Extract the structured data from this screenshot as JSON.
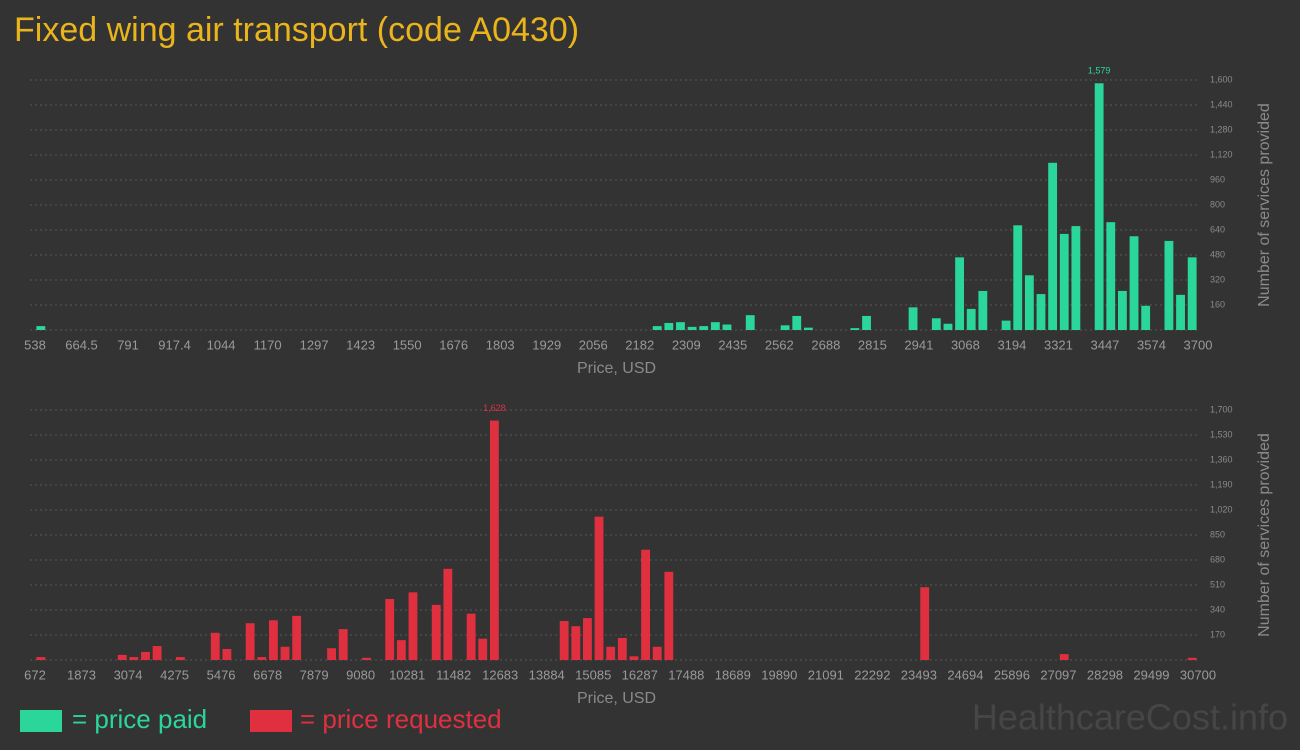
{
  "title": "Fixed wing air transport (code A0430)",
  "watermark": "HealthcareCost.info",
  "chart_data": [
    {
      "type": "histogram",
      "name": "= price paid",
      "color": "#2bd69a",
      "xlabel": "Price, USD",
      "ylabel": "Number of services provided",
      "bins": [
        538,
        569.62,
        601.24,
        632.86,
        664.48,
        696.1,
        727.72,
        759.34,
        790.96,
        822.58,
        854.2,
        885.82,
        917.44,
        949.06,
        980.68,
        1012.3,
        1043.92,
        1075.54,
        1107.16,
        1138.78,
        1170.4,
        1202.02,
        1233.64,
        1265.26,
        1296.88,
        1328.5,
        1360.12,
        1391.74,
        1423.36,
        1454.98,
        1486.6,
        1518.22,
        1549.84,
        1581.46,
        1613.08,
        1644.7,
        1676.32,
        1707.94,
        1739.56,
        1771.18,
        1802.8,
        1834.42,
        1866.04,
        1897.66,
        1929.28,
        1960.9,
        1992.52,
        2024.14,
        2055.76,
        2087.38,
        2119,
        2150.62,
        2182.24,
        2213.86,
        2245.48,
        2277.1,
        2308.72,
        2340.34,
        2371.96,
        2403.58,
        2435.2,
        2466.82,
        2498.44,
        2530.06,
        2561.68,
        2593.3,
        2624.92,
        2656.54,
        2688.16,
        2719.78,
        2751.4,
        2783.02,
        2814.64,
        2846.26,
        2877.88,
        2909.5,
        2941.12,
        2972.74,
        3004.36,
        3035.98,
        3067.6,
        3099.22,
        3130.84,
        3162.46,
        3194.08,
        3225.7,
        3257.32,
        3288.94,
        3320.56,
        3352.18,
        3383.8,
        3415.42,
        3447.04,
        3478.66,
        3510.28,
        3541.9,
        3573.52,
        3605.14,
        3636.76,
        3668.38,
        3700
      ],
      "values": [
        25,
        0,
        0,
        0,
        0,
        0,
        0,
        0,
        0,
        0,
        0,
        0,
        0,
        0,
        0,
        0,
        0,
        0,
        0,
        0,
        0,
        0,
        0,
        0,
        0,
        0,
        0,
        0,
        0,
        0,
        0,
        0,
        0,
        0,
        0,
        0,
        0,
        0,
        0,
        0,
        0,
        0,
        0,
        0,
        0,
        0,
        0,
        0,
        0,
        0,
        0,
        0,
        0,
        25,
        45,
        50,
        20,
        25,
        50,
        35,
        0,
        95,
        0,
        0,
        30,
        90,
        15,
        0,
        0,
        0,
        12,
        90,
        0,
        0,
        0,
        145,
        0,
        75,
        40,
        465,
        135,
        250,
        0,
        60,
        670,
        350,
        230,
        1070,
        615,
        665,
        0,
        1579,
        690,
        250,
        600,
        155,
        0,
        570,
        225,
        465
      ],
      "value_labels": {
        "91": "1,579"
      },
      "xlim": [
        538,
        3700
      ],
      "xticks": [
        538,
        {
          "value": 664.48,
          "label": "664.5"
        },
        {
          "value": 790.96,
          "label": "791"
        },
        {
          "value": 917.44,
          "label": "917.4"
        },
        {
          "value": 1043.92,
          "label": "1044"
        },
        {
          "value": 1170.4,
          "label": "1170"
        },
        {
          "value": 1296.88,
          "label": "1297"
        },
        {
          "value": 1423.36,
          "label": "1423"
        },
        {
          "value": 1549.84,
          "label": "1550"
        },
        {
          "value": 1676.32,
          "label": "1676"
        },
        {
          "value": 1802.8,
          "label": "1803"
        },
        {
          "value": 1929.28,
          "label": "1929"
        },
        {
          "value": 2055.76,
          "label": "2056"
        },
        {
          "value": 2182.24,
          "label": "2182"
        },
        {
          "value": 2308.72,
          "label": "2309"
        },
        {
          "value": 2435.2,
          "label": "2435"
        },
        {
          "value": 2561.68,
          "label": "2562"
        },
        {
          "value": 2688.16,
          "label": "2688"
        },
        {
          "value": 2814.64,
          "label": "2815"
        },
        {
          "value": 2941.12,
          "label": "2941"
        },
        {
          "value": 3067.6,
          "label": "3068"
        },
        {
          "value": 3194.08,
          "label": "3194"
        },
        {
          "value": 3320.56,
          "label": "3321"
        },
        {
          "value": 3447.04,
          "label": "3447"
        },
        {
          "value": 3573.52,
          "label": "3574"
        },
        3700
      ],
      "ylim": [
        0,
        1600
      ],
      "yticks": [
        160,
        320,
        480,
        640,
        800,
        960,
        {
          "value": 1120,
          "label": "1,120"
        },
        {
          "value": 1280,
          "label": "1,280"
        },
        {
          "value": 1440,
          "label": "1,440"
        },
        {
          "value": 1600,
          "label": "1,600"
        }
      ],
      "grid": true
    },
    {
      "type": "histogram",
      "name": "= price requested",
      "color": "#e0303f",
      "xlabel": "Price, USD",
      "ylabel": "Number of services provided",
      "bins": [
        672,
        972.28,
        1272.56,
        1572.84,
        1873.12,
        2173.4,
        2473.68,
        2773.96,
        3074.24,
        3374.52,
        3674.8,
        3975.08,
        4275.36,
        4575.64,
        4875.92,
        5176.2,
        5476.48,
        5776.76,
        6077.04,
        6377.32,
        6677.6,
        6977.88,
        7278.16,
        7578.44,
        7878.72,
        8179,
        8479.28,
        8779.56,
        9079.84,
        9380.12,
        9680.4,
        9980.68,
        10280.96,
        10581.24,
        10881.52,
        11181.8,
        11482.08,
        11782.36,
        12082.64,
        12382.92,
        12683.2,
        12983.48,
        13283.76,
        13584.04,
        13884.32,
        14184.6,
        14484.88,
        14785.16,
        15085.44,
        15385.72,
        15686,
        15986.28,
        16286.56,
        16586.84,
        16887.12,
        17187.4,
        17487.68,
        17787.96,
        18088.24,
        18388.52,
        18688.8,
        18989.08,
        19289.36,
        19589.64,
        19889.92,
        20190.2,
        20490.48,
        20790.76,
        21091.04,
        21391.32,
        21691.6,
        21991.88,
        22292.16,
        22592.44,
        22892.72,
        23193,
        23493.28,
        23793.56,
        24093.84,
        24394.12,
        24694.4,
        24994.68,
        25294.96,
        25595.24,
        25895.52,
        26195.8,
        26496.08,
        26796.36,
        27096.64,
        27396.92,
        27697.2,
        27997.48,
        28297.76,
        28598.04,
        28898.32,
        29198.6,
        29498.88,
        29799.16,
        30099.44,
        30399.72,
        30700
      ],
      "values": [
        20,
        0,
        0,
        0,
        0,
        0,
        0,
        35,
        20,
        55,
        95,
        0,
        20,
        0,
        0,
        185,
        75,
        0,
        250,
        20,
        270,
        90,
        300,
        0,
        0,
        80,
        210,
        0,
        15,
        0,
        415,
        135,
        460,
        0,
        375,
        620,
        0,
        315,
        145,
        1628,
        0,
        0,
        0,
        0,
        0,
        265,
        230,
        285,
        975,
        90,
        150,
        25,
        750,
        90,
        600,
        0,
        0,
        0,
        0,
        0,
        0,
        0,
        0,
        0,
        0,
        0,
        0,
        0,
        0,
        0,
        0,
        0,
        0,
        0,
        0,
        0,
        495,
        0,
        0,
        0,
        0,
        0,
        0,
        0,
        0,
        0,
        0,
        0,
        40,
        0,
        0,
        0,
        0,
        0,
        0,
        0,
        0,
        0,
        0,
        15
      ],
      "value_labels": {
        "39": "1,628"
      },
      "xlim": [
        672,
        30700
      ],
      "xticks": [
        672,
        {
          "value": 1873.12,
          "label": "1873"
        },
        {
          "value": 3074.24,
          "label": "3074"
        },
        {
          "value": 4275.36,
          "label": "4275"
        },
        {
          "value": 5476.48,
          "label": "5476"
        },
        {
          "value": 6677.6,
          "label": "6678"
        },
        {
          "value": 7878.72,
          "label": "7879"
        },
        {
          "value": 9079.84,
          "label": "9080"
        },
        {
          "value": 10280.96,
          "label": "10281"
        },
        {
          "value": 11482.08,
          "label": "11482"
        },
        {
          "value": 12683.2,
          "label": "12683"
        },
        {
          "value": 13884.32,
          "label": "13884"
        },
        {
          "value": 15085.44,
          "label": "15085"
        },
        {
          "value": 16286.56,
          "label": "16287"
        },
        {
          "value": 17487.68,
          "label": "17488"
        },
        {
          "value": 18688.8,
          "label": "18689"
        },
        {
          "value": 19889.92,
          "label": "19890"
        },
        {
          "value": 21091.04,
          "label": "21091"
        },
        {
          "value": 22292.16,
          "label": "22292"
        },
        {
          "value": 23493.28,
          "label": "23493"
        },
        {
          "value": 24694.4,
          "label": "24694"
        },
        {
          "value": 25895.52,
          "label": "25896"
        },
        {
          "value": 27096.64,
          "label": "27097"
        },
        {
          "value": 28297.76,
          "label": "28298"
        },
        {
          "value": 29498.88,
          "label": "29499"
        },
        30700
      ],
      "ylim": [
        0,
        1700
      ],
      "yticks": [
        170,
        340,
        510,
        680,
        850,
        {
          "value": 1020,
          "label": "1,020"
        },
        {
          "value": 1190,
          "label": "1,190"
        },
        {
          "value": 1360,
          "label": "1,360"
        },
        {
          "value": 1530,
          "label": "1,530"
        },
        {
          "value": 1700,
          "label": "1,700"
        }
      ],
      "grid": true
    }
  ]
}
